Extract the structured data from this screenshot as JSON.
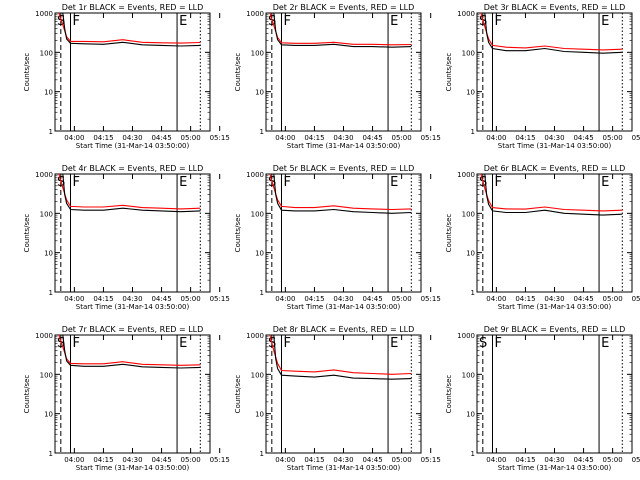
{
  "chart_data": {
    "type": "line",
    "ylabel": "Counts/sec",
    "xlabel": "Start Time (31-Mar-14 03:50:00)",
    "x_ticks": [
      "04:00",
      "04:15",
      "04:30",
      "04:45",
      "05:00",
      "05:15"
    ],
    "x_range_min": [
      0,
      80
    ],
    "y_ticks": [
      "1",
      "10",
      "100",
      "1000"
    ],
    "y_scale": "log",
    "ylim": [
      1,
      1000
    ],
    "markers": [
      {
        "label": "S",
        "style": "dotted",
        "x": 0
      },
      {
        "label": "",
        "style": "dashed",
        "x": 3
      },
      {
        "label": "F",
        "style": "solid",
        "x": 8
      },
      {
        "label": "E",
        "style": "solid",
        "x": 63
      },
      {
        "label": "",
        "style": "dotted",
        "x": 75
      }
    ],
    "series_colors": {
      "events": "#000000",
      "lld": "#ff0000"
    },
    "panels": [
      {
        "title": "Det 1r BLACK = Events, RED = LLD",
        "events": [
          [
            4,
            1000
          ],
          [
            5,
            400
          ],
          [
            6,
            220
          ],
          [
            8,
            170
          ],
          [
            15,
            165
          ],
          [
            25,
            160
          ],
          [
            35,
            180
          ],
          [
            45,
            155
          ],
          [
            55,
            150
          ],
          [
            65,
            145
          ],
          [
            75,
            150
          ]
        ],
        "lld": [
          [
            2,
            1000
          ],
          [
            4,
            500
          ],
          [
            6,
            250
          ],
          [
            8,
            190
          ],
          [
            15,
            190
          ],
          [
            25,
            185
          ],
          [
            35,
            210
          ],
          [
            45,
            180
          ],
          [
            55,
            175
          ],
          [
            65,
            172
          ],
          [
            75,
            178
          ]
        ]
      },
      {
        "title": "Det 2r BLACK = Events, RED = LLD",
        "events": [
          [
            4,
            1000
          ],
          [
            5,
            350
          ],
          [
            6,
            210
          ],
          [
            8,
            155
          ],
          [
            15,
            150
          ],
          [
            25,
            150
          ],
          [
            35,
            160
          ],
          [
            45,
            140
          ],
          [
            55,
            140
          ],
          [
            65,
            135
          ],
          [
            75,
            140
          ]
        ],
        "lld": [
          [
            2,
            1000
          ],
          [
            4,
            480
          ],
          [
            6,
            240
          ],
          [
            8,
            175
          ],
          [
            15,
            170
          ],
          [
            25,
            170
          ],
          [
            35,
            180
          ],
          [
            45,
            160
          ],
          [
            55,
            160
          ],
          [
            65,
            155
          ],
          [
            75,
            158
          ]
        ]
      },
      {
        "title": "Det 3r BLACK = Events, RED = LLD",
        "events": [
          [
            4,
            1000
          ],
          [
            5,
            300
          ],
          [
            6,
            180
          ],
          [
            8,
            125
          ],
          [
            15,
            110
          ],
          [
            25,
            110
          ],
          [
            35,
            125
          ],
          [
            45,
            105
          ],
          [
            55,
            100
          ],
          [
            65,
            95
          ],
          [
            75,
            100
          ]
        ],
        "lld": [
          [
            2,
            1000
          ],
          [
            4,
            450
          ],
          [
            6,
            220
          ],
          [
            8,
            150
          ],
          [
            15,
            135
          ],
          [
            25,
            130
          ],
          [
            35,
            145
          ],
          [
            45,
            125
          ],
          [
            55,
            120
          ],
          [
            65,
            115
          ],
          [
            75,
            120
          ]
        ]
      },
      {
        "title": "Det 4r BLACK = Events, RED = LLD",
        "events": [
          [
            4,
            1000
          ],
          [
            5,
            300
          ],
          [
            6,
            180
          ],
          [
            8,
            125
          ],
          [
            15,
            120
          ],
          [
            25,
            120
          ],
          [
            35,
            135
          ],
          [
            45,
            120
          ],
          [
            55,
            115
          ],
          [
            65,
            110
          ],
          [
            75,
            115
          ]
        ],
        "lld": [
          [
            2,
            1000
          ],
          [
            4,
            450
          ],
          [
            6,
            220
          ],
          [
            8,
            150
          ],
          [
            15,
            145
          ],
          [
            25,
            145
          ],
          [
            35,
            160
          ],
          [
            45,
            140
          ],
          [
            55,
            135
          ],
          [
            65,
            130
          ],
          [
            75,
            135
          ]
        ]
      },
      {
        "title": "Det 5r BLACK = Events, RED = LLD",
        "events": [
          [
            4,
            1000
          ],
          [
            5,
            300
          ],
          [
            6,
            180
          ],
          [
            8,
            120
          ],
          [
            15,
            115
          ],
          [
            25,
            115
          ],
          [
            35,
            125
          ],
          [
            45,
            110
          ],
          [
            55,
            105
          ],
          [
            65,
            100
          ],
          [
            75,
            105
          ]
        ],
        "lld": [
          [
            2,
            1000
          ],
          [
            4,
            450
          ],
          [
            6,
            220
          ],
          [
            8,
            150
          ],
          [
            15,
            140
          ],
          [
            25,
            140
          ],
          [
            35,
            155
          ],
          [
            45,
            135
          ],
          [
            55,
            130
          ],
          [
            65,
            125
          ],
          [
            75,
            130
          ]
        ]
      },
      {
        "title": "Det 6r BLACK = Events, RED = LLD",
        "events": [
          [
            4,
            1000
          ],
          [
            5,
            280
          ],
          [
            6,
            170
          ],
          [
            8,
            115
          ],
          [
            15,
            105
          ],
          [
            25,
            105
          ],
          [
            35,
            120
          ],
          [
            45,
            100
          ],
          [
            55,
            95
          ],
          [
            65,
            90
          ],
          [
            75,
            95
          ]
        ],
        "lld": [
          [
            2,
            1000
          ],
          [
            4,
            430
          ],
          [
            6,
            210
          ],
          [
            8,
            140
          ],
          [
            15,
            130
          ],
          [
            25,
            128
          ],
          [
            35,
            145
          ],
          [
            45,
            125
          ],
          [
            55,
            120
          ],
          [
            65,
            115
          ],
          [
            75,
            120
          ]
        ]
      },
      {
        "title": "Det 7r BLACK = Events, RED = LLD",
        "events": [
          [
            4,
            1000
          ],
          [
            5,
            400
          ],
          [
            6,
            220
          ],
          [
            8,
            170
          ],
          [
            15,
            160
          ],
          [
            25,
            160
          ],
          [
            35,
            180
          ],
          [
            45,
            155
          ],
          [
            55,
            150
          ],
          [
            65,
            145
          ],
          [
            75,
            150
          ]
        ],
        "lld": [
          [
            2,
            1000
          ],
          [
            4,
            500
          ],
          [
            6,
            250
          ],
          [
            8,
            190
          ],
          [
            15,
            185
          ],
          [
            25,
            185
          ],
          [
            35,
            210
          ],
          [
            45,
            180
          ],
          [
            55,
            175
          ],
          [
            65,
            170
          ],
          [
            75,
            175
          ]
        ]
      },
      {
        "title": "Det 8r BLACK = Events, RED = LLD",
        "events": [
          [
            4,
            1000
          ],
          [
            5,
            250
          ],
          [
            6,
            140
          ],
          [
            8,
            95
          ],
          [
            15,
            90
          ],
          [
            25,
            85
          ],
          [
            35,
            95
          ],
          [
            45,
            80
          ],
          [
            55,
            78
          ],
          [
            65,
            75
          ],
          [
            75,
            78
          ]
        ],
        "lld": [
          [
            2,
            1000
          ],
          [
            4,
            400
          ],
          [
            6,
            190
          ],
          [
            8,
            125
          ],
          [
            15,
            120
          ],
          [
            25,
            115
          ],
          [
            35,
            130
          ],
          [
            45,
            110
          ],
          [
            55,
            105
          ],
          [
            65,
            100
          ],
          [
            75,
            105
          ]
        ]
      },
      {
        "title": "Det 9r BLACK = Events, RED = LLD",
        "events": [],
        "lld": []
      }
    ]
  }
}
